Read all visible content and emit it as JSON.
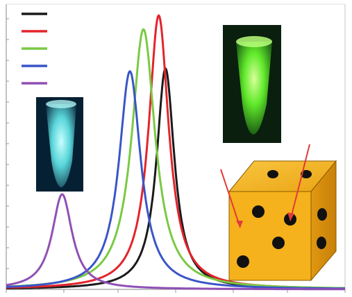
{
  "chart_data": {
    "type": "line",
    "title": "",
    "xlabel": "",
    "ylabel": "",
    "xlim": [
      0,
      100
    ],
    "ylim": [
      0,
      1
    ],
    "grid": false,
    "legend": {
      "placement": "top-left",
      "entries_labeled": false
    },
    "series": [
      {
        "color": "#1a1a1a",
        "peak_x": 47,
        "peak_y": 0.79,
        "width": 3.2,
        "y_at_left": 0.0
      },
      {
        "color": "#e3242b",
        "peak_x": 45,
        "peak_y": 0.98,
        "width": 3.6,
        "y_at_left": 0.0
      },
      {
        "color": "#7ac943",
        "peak_x": 40.5,
        "peak_y": 0.93,
        "width": 4.2,
        "y_at_left": 0.0
      },
      {
        "color": "#3a55c8",
        "peak_x": 36.5,
        "peak_y": 0.78,
        "width": 3.9,
        "y_at_left": 0.0
      },
      {
        "color": "#8f4fb5",
        "peak_x": 16.5,
        "peak_y": 0.34,
        "width": 3.6,
        "y_at_left": 0.0
      }
    ]
  },
  "insets": {
    "left_tube_glow": "#7fe6e6",
    "right_tube_glow": "#7dff3a",
    "cube_face": "#f5b21c",
    "cube_dots": "#111111",
    "arrow_color": "#e23a3a"
  }
}
